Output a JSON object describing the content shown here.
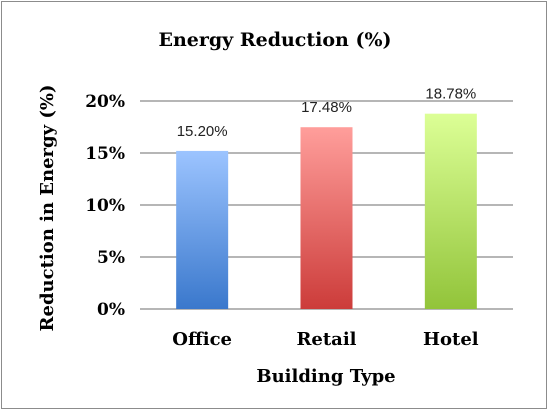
{
  "chart_data": {
    "type": "bar",
    "title": "Energy Reduction (%)",
    "xlabel": "Building Type",
    "ylabel": "Reduction in Energy (%)",
    "categories": [
      "Office",
      "Retail",
      "Hotel"
    ],
    "values": [
      15.2,
      17.48,
      18.78
    ],
    "data_labels": [
      "15.20%",
      "17.48%",
      "18.78%"
    ],
    "yticks": [
      "0%",
      "5%",
      "10%",
      "15%",
      "20%"
    ],
    "ylim": [
      0,
      20
    ],
    "grid": true,
    "legend": "none",
    "colors": {
      "Office": [
        "#9cc4ff",
        "#3a78cc"
      ],
      "Retail": [
        "#ff9e9b",
        "#cc3c3a"
      ],
      "Hotel": [
        "#dcff96",
        "#92c43a"
      ]
    }
  }
}
